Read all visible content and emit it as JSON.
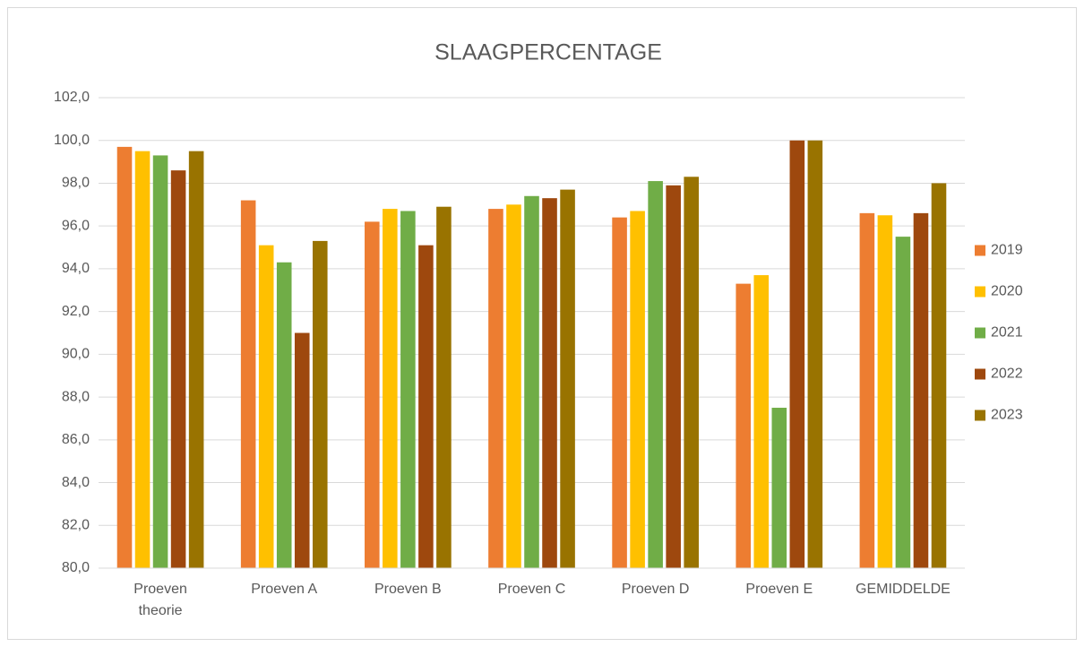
{
  "chart_data": {
    "type": "bar",
    "title": "SLAAGPERCENTAGE",
    "categories": [
      "Proeven theorie",
      "Proeven A",
      "Proeven B",
      "Proeven C",
      "Proeven D",
      "Proeven E",
      "GEMIDDELDE"
    ],
    "series": [
      {
        "name": "2019",
        "color": "#ed7d31",
        "values": [
          99.7,
          97.2,
          96.2,
          96.8,
          96.4,
          93.3,
          96.6
        ]
      },
      {
        "name": "2020",
        "color": "#ffc000",
        "values": [
          99.5,
          95.1,
          96.8,
          97.0,
          96.7,
          93.7,
          96.5
        ]
      },
      {
        "name": "2021",
        "color": "#70ad47",
        "values": [
          99.3,
          94.3,
          96.7,
          97.4,
          98.1,
          87.5,
          95.5
        ]
      },
      {
        "name": "2022",
        "color": "#9e480e",
        "values": [
          98.6,
          91.0,
          95.1,
          97.3,
          97.9,
          100.0,
          96.6
        ]
      },
      {
        "name": "2023",
        "color": "#997300",
        "values": [
          99.5,
          95.3,
          96.9,
          97.7,
          98.3,
          100.0,
          98.0
        ]
      }
    ],
    "ylim": [
      80,
      102
    ],
    "yticks": [
      {
        "value": 80,
        "label": "80,0"
      },
      {
        "value": 82,
        "label": "82,0"
      },
      {
        "value": 84,
        "label": "84,0"
      },
      {
        "value": 86,
        "label": "86,0"
      },
      {
        "value": 88,
        "label": "88,0"
      },
      {
        "value": 90,
        "label": "90,0"
      },
      {
        "value": 92,
        "label": "92,0"
      },
      {
        "value": 94,
        "label": "94,0"
      },
      {
        "value": 96,
        "label": "96,0"
      },
      {
        "value": 98,
        "label": "98,0"
      },
      {
        "value": 100,
        "label": "100,0"
      },
      {
        "value": 102,
        "label": "102,0"
      }
    ],
    "grid": true,
    "legend": "right"
  }
}
